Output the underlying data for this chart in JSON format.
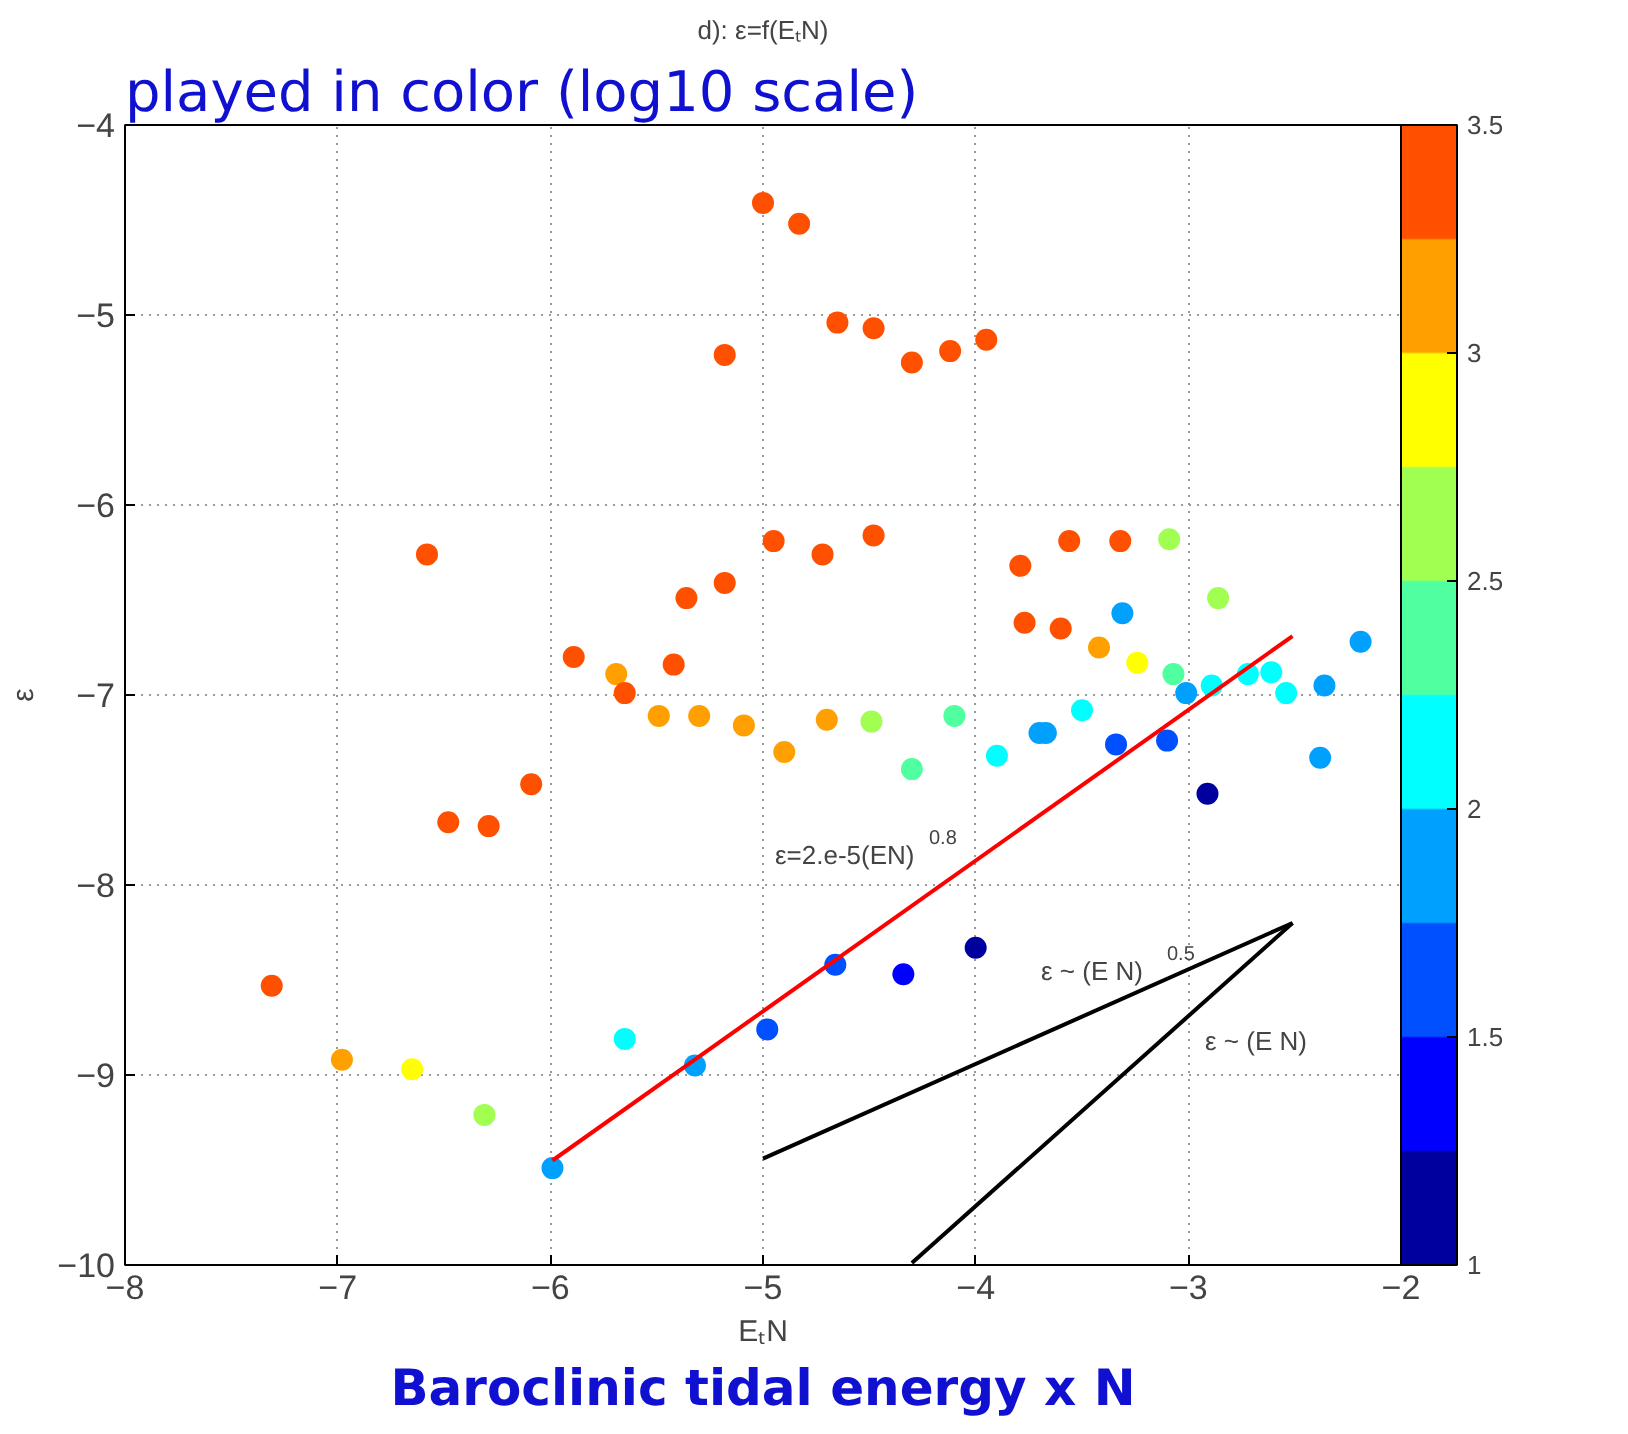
{
  "chart_data": {
    "type": "scatter",
    "title": "d): ε=f(EₜN)",
    "xlabel": "EₜN",
    "ylabel": "ε",
    "xlim": [
      -8,
      -2
    ],
    "ylim": [
      -10,
      -4
    ],
    "xticks": [
      -8,
      -7,
      -6,
      -5,
      -4,
      -3,
      -2
    ],
    "yticks": [
      -10,
      -9,
      -8,
      -7,
      -6,
      -5,
      -4
    ],
    "grid": true,
    "clim": [
      1,
      3.5
    ],
    "cticks": [
      1,
      1.5,
      2,
      2.5,
      3,
      3.5
    ],
    "series": [
      {
        "marker": "circle",
        "x": [
          -5.0,
          -4.83,
          -5.18,
          -6.58,
          -4.95,
          -5.18,
          -5.36,
          -5.89,
          -5.69,
          -5.65,
          -5.42,
          -5.49,
          -5.3,
          -5.09,
          -4.65,
          -4.48,
          -4.3,
          -4.12,
          -3.95,
          -4.72,
          -4.48,
          -3.79,
          -3.56,
          -3.32,
          -3.09,
          -2.86,
          -3.77,
          -3.6,
          -3.31,
          -3.42,
          -3.24,
          -3.07,
          -3.01,
          -2.89,
          -2.72,
          -2.61,
          -2.54,
          -2.36,
          -2.19,
          -4.7,
          -4.49,
          -4.1,
          -3.5,
          -4.9,
          -4.3,
          -3.9,
          -3.7,
          -3.67,
          -3.34,
          -3.1,
          -2.91,
          -2.38,
          -4.66,
          -4.34,
          -4.0,
          -4.98,
          -6.09,
          -6.48,
          -6.29,
          -7.31,
          -6.98,
          -6.65,
          -6.31,
          -5.99,
          -5.65,
          -5.32
        ],
        "values": [
          -4.41,
          -4.52,
          -5.21,
          -6.26,
          -6.19,
          -6.41,
          -6.49,
          -6.8,
          -6.89,
          -6.99,
          -6.84,
          -7.11,
          -7.11,
          -7.16,
          -5.04,
          -5.07,
          -5.25,
          -5.19,
          -5.13,
          -6.26,
          -6.16,
          -6.32,
          -6.19,
          -6.19,
          -6.18,
          -6.49,
          -6.62,
          -6.65,
          -6.57,
          -6.75,
          -6.83,
          -6.89,
          -6.99,
          -6.95,
          -6.89,
          -6.88,
          -6.99,
          -6.95,
          -6.72,
          -7.13,
          -7.14,
          -7.11,
          -7.08,
          -7.3,
          -7.39,
          -7.32,
          -7.2,
          -7.2,
          -7.26,
          -7.24,
          -7.52,
          -7.33,
          -8.42,
          -8.47,
          -8.33,
          -8.76,
          -7.47,
          -7.67,
          -7.69,
          -8.53,
          -8.92,
          -8.97,
          -9.21,
          -9.49,
          -8.81,
          -8.95
        ],
        "colors": [
          "#ff5000",
          "#ff5000",
          "#ff5000",
          "#ff5000",
          "#ff5000",
          "#ff5000",
          "#ff5000",
          "#ff5000",
          "#ffa000",
          "#ff5000",
          "#ff5000",
          "#ffa000",
          "#ffa000",
          "#ffa000",
          "#ff5000",
          "#ff5000",
          "#ff5000",
          "#ff5000",
          "#ff5000",
          "#ff5000",
          "#ff5000",
          "#ff5000",
          "#ff5000",
          "#ff5000",
          "#a0ff50",
          "#a0ff50",
          "#ff5000",
          "#ff5000",
          "#00a0ff",
          "#ffa000",
          "#ffff00",
          "#50ffa0",
          "#00a0ff",
          "#00ffff",
          "#00ffff",
          "#00ffff",
          "#00ffff",
          "#00a0ff",
          "#00a0ff",
          "#ffa000",
          "#a0ff50",
          "#50ffa0",
          "#00ffff",
          "#ffa000",
          "#50ffa0",
          "#00ffff",
          "#00a0ff",
          "#00a0ff",
          "#0050ff",
          "#0050ff",
          "#00009f",
          "#00a0ff",
          "#0050ff",
          "#0000ff",
          "#00009f",
          "#0050ff",
          "#ff5000",
          "#ff5000",
          "#ff5000",
          "#ff5000",
          "#ffa000",
          "#ffff00",
          "#a0ff50",
          "#00a0ff",
          "#00ffff",
          "#00a0ff"
        ]
      },
      {
        "type": "line",
        "marker": "none",
        "color": "#ff0000",
        "x": [
          -5.99,
          -2.51
        ],
        "values": [
          -9.45,
          -6.69
        ]
      },
      {
        "type": "line",
        "marker": "none",
        "color": "#000000",
        "x": [
          -5.0,
          -2.51
        ],
        "values": [
          -9.44,
          -8.2
        ]
      },
      {
        "type": "line",
        "marker": "none",
        "color": "#000000",
        "x": [
          -4.3,
          -2.51
        ],
        "values": [
          -9.99,
          -8.2
        ]
      }
    ],
    "annotations": [
      "ε=2.e-5(EN)$^{0.8}$",
      "ε ~ (E N)$^{0.5}$",
      "ε ~ (E N)",
      "played in color (log10 scale)",
      "Baroclinic tidal energy x N"
    ]
  }
}
